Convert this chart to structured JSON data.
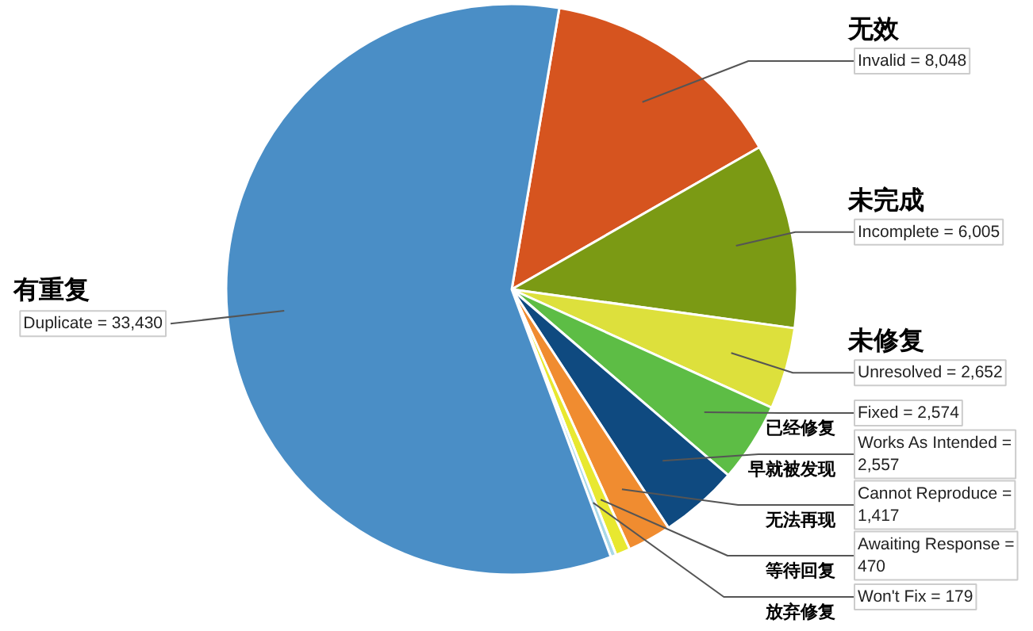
{
  "chart_data": {
    "type": "pie",
    "categories": [
      "Invalid =",
      "Incomplete =",
      "Unresolved =",
      "Fixed =",
      "Works As Intended =",
      "Cannot Reproduce =",
      "Awaiting Response =",
      "Won't Fix =",
      "Duplicate ="
    ],
    "values": [
      8048,
      6005,
      2652,
      2574,
      2557,
      1417,
      470,
      179,
      33430
    ],
    "value_labels": [
      "8,048",
      "6,005",
      "2,652",
      "2,574",
      "2,557",
      "1,417",
      "470",
      "179",
      "33,430"
    ],
    "colors": [
      "#d6541f",
      "#7b9a14",
      "#dde03c",
      "#5dbd45",
      "#0f4a80",
      "#f08c30",
      "#e8e830",
      "#a8d8e8",
      "#4a8ec6"
    ],
    "annotations": [
      "无效",
      "未完成",
      "未修复",
      "已经修复",
      "早就被发现",
      "无法再现",
      "等待回复",
      "放弃修复",
      "有重复"
    ]
  }
}
